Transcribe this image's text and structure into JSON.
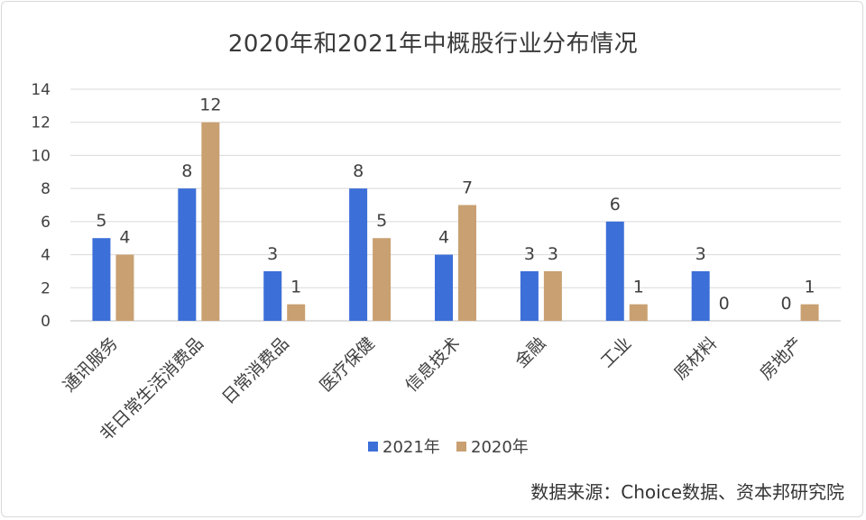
{
  "chart_data": {
    "type": "bar",
    "title": "2020年和2021年中概股行业分布情况",
    "categories": [
      "通讯服务",
      "非日常生活消费品",
      "日常消费品",
      "医疗保健",
      "信息技术",
      "金融",
      "工业",
      "原材料",
      "房地产"
    ],
    "series": [
      {
        "name": "2021年",
        "values": [
          5,
          8,
          3,
          8,
          4,
          3,
          6,
          3,
          0
        ],
        "color": "#3c6fd8"
      },
      {
        "name": "2020年",
        "values": [
          4,
          12,
          1,
          5,
          7,
          3,
          1,
          0,
          1
        ],
        "color": "#c9a071"
      }
    ],
    "ylim": [
      0,
      14
    ],
    "yticks": [
      0,
      2,
      4,
      6,
      8,
      10,
      12,
      14
    ],
    "grid": true,
    "legend_position": "bottom",
    "data_labels": true,
    "xlabel": "",
    "ylabel": ""
  },
  "source_note": "数据来源：Choice数据、资本邦研究院"
}
